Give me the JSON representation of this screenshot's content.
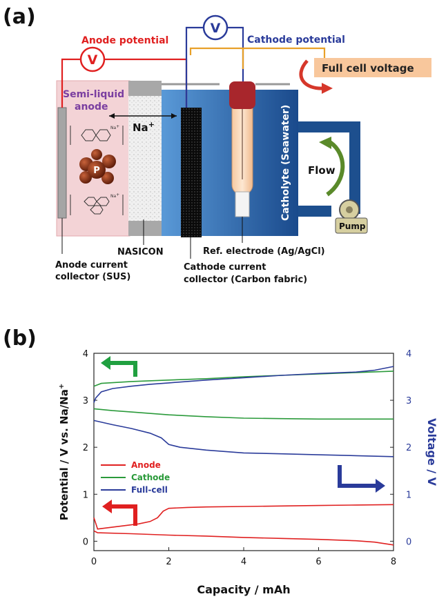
{
  "panel_a": {
    "panel_label": "(a)",
    "voltmeter_symbol": "V",
    "anode_potential": "Anode potential",
    "cathode_potential": "Cathode potential",
    "full_cell_voltage": "Full cell voltage",
    "semi_liquid_line1": "Semi-liquid",
    "semi_liquid_line2": "anode",
    "na_ion": "Na",
    "na_sup": "+",
    "phosphorus": "P",
    "catholyte": "Catholyte (Seawater)",
    "flow": "Flow",
    "pump": "Pump",
    "nasicon": "NASICON",
    "ref_electrode": "Ref. electrode (Ag/AgCl)",
    "anode_cc_line1": "Anode current",
    "anode_cc_line2": "collector (SUS)",
    "cathode_cc_line1": "Cathode current",
    "cathode_cc_line2": "collector (Carbon fabric)",
    "small_na": "Na",
    "small_plus": "+"
  },
  "chart_data": {
    "panel_label": "(b)",
    "type": "line",
    "xlabel": "Capacity / mAh",
    "ylabel_left": "Potential / V vs. Na/Na",
    "ylabel_left_sup": "+",
    "ylabel_right": "Voltage / V",
    "xlim": [
      0,
      8
    ],
    "ylim_left": [
      -0.2,
      4
    ],
    "ylim_right": [
      -0.2,
      4
    ],
    "x_ticks": [
      "0",
      "2",
      "4",
      "6",
      "8"
    ],
    "y_ticks": [
      "0",
      "1",
      "2",
      "3",
      "4"
    ],
    "legend": [
      "Anode",
      "Cathode",
      "Full-cell"
    ],
    "colors": {
      "anode": "#e02020",
      "cathode": "#2a9a3a",
      "full": "#2a3b9a"
    },
    "series": [
      {
        "name": "Anode",
        "segment": "charge",
        "x": [
          0,
          0.1,
          0.3,
          0.8,
          1.2,
          1.5,
          1.7,
          1.85,
          2.0,
          2.5,
          3,
          4,
          5,
          6,
          7,
          8
        ],
        "y": [
          0.5,
          0.26,
          0.28,
          0.33,
          0.37,
          0.42,
          0.5,
          0.64,
          0.7,
          0.72,
          0.73,
          0.74,
          0.75,
          0.76,
          0.77,
          0.78
        ]
      },
      {
        "name": "Anode",
        "segment": "discharge",
        "x": [
          0,
          0.1,
          1,
          2,
          3,
          4,
          5,
          6,
          7,
          7.5,
          8
        ],
        "y": [
          0.22,
          0.18,
          0.16,
          0.13,
          0.11,
          0.08,
          0.06,
          0.04,
          0.01,
          -0.02,
          -0.08
        ]
      },
      {
        "name": "Cathode",
        "segment": "charge",
        "x": [
          0,
          0.2,
          1,
          2,
          3,
          4,
          5,
          6,
          7,
          8
        ],
        "y": [
          3.3,
          3.36,
          3.4,
          3.43,
          3.46,
          3.5,
          3.53,
          3.56,
          3.59,
          3.62
        ]
      },
      {
        "name": "Cathode",
        "segment": "discharge",
        "x": [
          0,
          0.5,
          1,
          2,
          3,
          4,
          5,
          6,
          7,
          8
        ],
        "y": [
          2.82,
          2.78,
          2.75,
          2.69,
          2.65,
          2.62,
          2.61,
          2.6,
          2.6,
          2.6
        ]
      },
      {
        "name": "Full-cell",
        "segment": "charge",
        "x": [
          0,
          0.05,
          0.2,
          0.5,
          1,
          1.5,
          2,
          3,
          4,
          5,
          6,
          7,
          7.5,
          8
        ],
        "y": [
          2.95,
          3.05,
          3.18,
          3.25,
          3.3,
          3.34,
          3.37,
          3.43,
          3.48,
          3.53,
          3.57,
          3.6,
          3.64,
          3.72
        ]
      },
      {
        "name": "Full-cell",
        "segment": "discharge",
        "x": [
          0,
          0.5,
          1,
          1.5,
          1.8,
          2.0,
          2.3,
          3,
          4,
          5,
          6,
          7,
          8
        ],
        "y": [
          2.57,
          2.48,
          2.4,
          2.3,
          2.2,
          2.06,
          2.0,
          1.94,
          1.88,
          1.86,
          1.84,
          1.82,
          1.8
        ]
      }
    ]
  }
}
